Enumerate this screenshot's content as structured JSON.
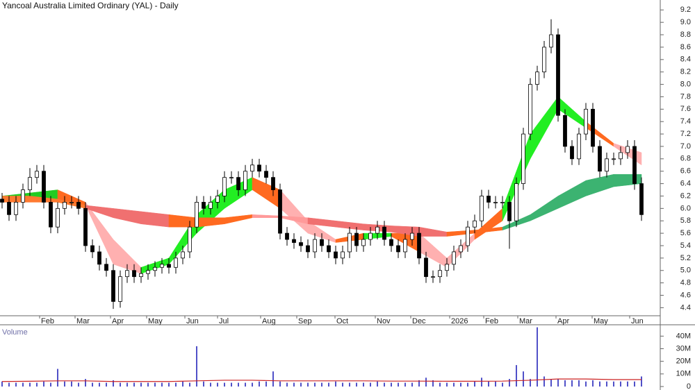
{
  "chart_data": {
    "type": "candlestick",
    "title": "Yancoal Australia Limited Ordinary (YAL) - Daily",
    "xlim": [
      -0.3,
      94.7
    ],
    "xticks": [
      {
        "value": 5.4,
        "label": "Feb"
      },
      {
        "value": 10.5,
        "label": "Mar"
      },
      {
        "value": 15.6,
        "label": "Apr"
      },
      {
        "value": 20.8,
        "label": "May"
      },
      {
        "value": 26.3,
        "label": "Jun"
      },
      {
        "value": 31,
        "label": "Jul"
      },
      {
        "value": 37.2,
        "label": "Aug"
      },
      {
        "value": 42.4,
        "label": "Sep"
      },
      {
        "value": 47.9,
        "label": "Oct"
      },
      {
        "value": 53.7,
        "label": "Nov"
      },
      {
        "value": 58.8,
        "label": "Dec"
      },
      {
        "value": 64.4,
        "label": "2026"
      },
      {
        "value": 69.3,
        "label": "Feb"
      },
      {
        "value": 74.2,
        "label": "Mar"
      },
      {
        "value": 79.7,
        "label": "Apr"
      },
      {
        "value": 84.9,
        "label": "May"
      },
      {
        "value": 90.3,
        "label": "Jun"
      }
    ],
    "ylim": [
      4.27,
      9.36
    ],
    "yticks": [
      4.4,
      4.6,
      4.8,
      {
        "value": 5,
        "label": "5.0"
      },
      5.2,
      5.4,
      5.6,
      5.8,
      {
        "value": 6,
        "label": "6.0"
      },
      6.2,
      6.4,
      6.6,
      6.8,
      {
        "value": 7,
        "label": "7.0"
      },
      7.2,
      7.4,
      7.6,
      7.8,
      {
        "value": 8,
        "label": "8.0"
      },
      8.2,
      8.4,
      8.6,
      8.8,
      {
        "value": 9,
        "label": "9.0"
      },
      9.2
    ],
    "up_color": "#ffffff",
    "down_color": "#000000",
    "open": [
      6.15,
      6.1,
      5.9,
      6.1,
      6.3,
      6.5,
      6.6,
      6.1,
      5.7,
      6.0,
      6.1,
      6.1,
      6.0,
      5.4,
      5.3,
      5.1,
      5.0,
      4.5,
      4.9,
      5.0,
      4.9,
      4.95,
      5.0,
      5.05,
      5.1,
      5.05,
      5.2,
      5.3,
      5.7,
      6.1,
      6.0,
      6.1,
      6.2,
      6.5,
      6.5,
      6.3,
      6.6,
      6.7,
      6.6,
      6.5,
      6.3,
      5.6,
      5.5,
      5.45,
      5.4,
      5.3,
      5.5,
      5.4,
      5.3,
      5.2,
      5.3,
      5.6,
      5.4,
      5.5,
      5.6,
      5.7,
      5.5,
      5.4,
      5.3,
      5.5,
      5.6,
      5.2,
      4.9,
      4.9,
      5.0,
      5.1,
      5.3,
      5.4,
      5.7,
      5.8,
      6.2,
      6.1,
      6.1,
      6.1,
      5.8,
      6.4,
      7.2,
      8.0,
      8.2,
      8.6,
      8.8,
      7.5,
      7.0,
      6.8,
      7.2,
      7.6,
      7.0,
      6.6,
      6.8,
      6.8,
      6.9,
      7.0,
      6.4
    ],
    "high": [
      6.25,
      6.2,
      6.2,
      6.4,
      6.65,
      6.7,
      6.7,
      6.2,
      6.1,
      6.2,
      6.2,
      6.2,
      6.1,
      5.5,
      5.4,
      5.2,
      5.1,
      5.0,
      5.1,
      5.1,
      5.05,
      5.1,
      5.15,
      5.2,
      5.2,
      5.3,
      5.4,
      5.8,
      6.2,
      6.2,
      6.2,
      6.3,
      6.6,
      6.6,
      6.6,
      6.7,
      6.8,
      6.8,
      6.7,
      6.6,
      6.4,
      5.7,
      5.6,
      5.55,
      5.5,
      5.6,
      5.6,
      5.5,
      5.4,
      5.4,
      5.7,
      5.7,
      5.6,
      5.7,
      5.8,
      5.8,
      5.6,
      5.5,
      5.6,
      5.7,
      5.7,
      5.3,
      5.0,
      5.1,
      5.2,
      5.4,
      5.5,
      5.8,
      5.9,
      6.3,
      6.3,
      6.2,
      6.2,
      6.2,
      6.5,
      7.3,
      8.1,
      8.3,
      8.7,
      9.05,
      8.9,
      7.6,
      7.1,
      7.3,
      7.7,
      7.7,
      7.1,
      6.9,
      6.9,
      7.0,
      7.1,
      7.1,
      6.5
    ],
    "low": [
      6.0,
      5.8,
      5.8,
      6.0,
      6.2,
      6.4,
      6.0,
      5.6,
      5.6,
      5.9,
      6.0,
      5.9,
      5.3,
      5.2,
      5.0,
      4.9,
      4.38,
      4.4,
      4.8,
      4.8,
      4.8,
      4.85,
      4.9,
      4.95,
      4.95,
      4.95,
      5.1,
      5.2,
      5.6,
      5.9,
      5.9,
      6.0,
      6.1,
      6.4,
      6.2,
      6.2,
      6.5,
      6.5,
      6.4,
      6.2,
      5.5,
      5.4,
      5.35,
      5.3,
      5.2,
      5.2,
      5.3,
      5.2,
      5.1,
      5.1,
      5.2,
      5.3,
      5.3,
      5.4,
      5.5,
      5.4,
      5.3,
      5.2,
      5.2,
      5.4,
      5.1,
      4.8,
      4.8,
      4.8,
      4.9,
      5.0,
      5.2,
      5.3,
      5.6,
      5.7,
      6.0,
      6.0,
      6.0,
      5.35,
      5.7,
      6.3,
      7.1,
      7.9,
      8.1,
      8.5,
      7.4,
      6.9,
      6.7,
      6.7,
      7.1,
      6.9,
      6.5,
      6.5,
      6.7,
      6.7,
      6.8,
      6.3,
      5.8
    ],
    "close": [
      6.1,
      5.9,
      6.1,
      6.3,
      6.5,
      6.6,
      6.1,
      5.7,
      6.0,
      6.1,
      6.1,
      6.0,
      5.4,
      5.3,
      5.1,
      5.0,
      4.5,
      4.9,
      5.0,
      4.9,
      4.95,
      5.0,
      5.05,
      5.1,
      5.05,
      5.2,
      5.3,
      5.7,
      6.1,
      6.0,
      6.1,
      6.2,
      6.5,
      6.5,
      6.3,
      6.6,
      6.7,
      6.6,
      6.5,
      6.3,
      5.6,
      5.5,
      5.45,
      5.4,
      5.3,
      5.5,
      5.4,
      5.3,
      5.2,
      5.3,
      5.6,
      5.4,
      5.5,
      5.6,
      5.7,
      5.5,
      5.4,
      5.3,
      5.5,
      5.6,
      5.2,
      4.9,
      4.9,
      5.0,
      5.1,
      5.3,
      5.4,
      5.7,
      5.8,
      6.2,
      6.1,
      6.1,
      6.1,
      5.8,
      6.4,
      7.2,
      8.0,
      8.2,
      8.6,
      8.8,
      7.5,
      7.0,
      6.8,
      7.2,
      7.6,
      7.0,
      6.6,
      6.8,
      6.8,
      6.9,
      7.0,
      6.4,
      5.9
    ],
    "band_x": [
      0,
      4,
      8,
      12,
      16,
      20,
      24,
      28,
      32,
      36,
      40,
      44,
      48,
      52,
      56,
      60,
      64,
      68,
      72,
      76,
      80,
      84,
      88,
      92
    ],
    "bands": [
      {
        "lower": [
          6.1,
          6.15,
          6.1,
          6.05,
          5.1,
          4.95,
          5.1,
          5.6,
          6.0,
          6.3,
          6.0,
          5.6,
          5.45,
          5.5,
          5.55,
          5.3,
          5.05,
          5.5,
          5.8,
          6.8,
          7.6,
          7.3,
          7.0,
          6.7
        ],
        "upper": [
          6.2,
          6.25,
          6.3,
          6.1,
          5.5,
          5.05,
          5.2,
          5.9,
          6.3,
          6.5,
          6.3,
          5.8,
          5.5,
          5.6,
          5.6,
          5.6,
          5.2,
          5.6,
          6.0,
          7.2,
          7.8,
          7.4,
          7.05,
          6.9
        ],
        "colors": [
          "#22cc22",
          "#22cc22",
          "#ff6a20",
          "#ffb0b0",
          "#ffb0b0",
          "#22ee22",
          "#22ee22",
          "#22ee22",
          "#22ee22",
          "#ff6a20",
          "#ffb0b0",
          "#ffb0b0",
          "#ff6a20",
          "#22ee22",
          "#ff6a20",
          "#ffb0b0",
          "#ffb0b0",
          "#ff6a20",
          "#22ee22",
          "#22ee22",
          "#22ee22",
          "#ff6a20",
          "#ffb0b0"
        ]
      },
      {
        "lower": [
          6.1,
          6.1,
          6.1,
          6.0,
          5.85,
          5.75,
          5.7,
          5.7,
          5.75,
          5.85,
          5.85,
          5.75,
          5.7,
          5.65,
          5.62,
          5.55,
          5.55,
          5.6,
          5.65,
          5.8,
          6.0,
          6.2,
          6.35,
          6.4
        ],
        "upper": [
          6.2,
          6.2,
          6.15,
          6.05,
          6.0,
          5.95,
          5.9,
          5.85,
          5.85,
          5.9,
          5.88,
          5.85,
          5.8,
          5.75,
          5.72,
          5.7,
          5.62,
          5.65,
          5.7,
          5.9,
          6.2,
          6.45,
          6.55,
          6.55
        ],
        "colors": [
          "#ff7a30",
          "#ff7a30",
          "#ff7a30",
          "#f07070",
          "#f07070",
          "#f07070",
          "#ff6a20",
          "#ff6a20",
          "#ff6a20",
          "#ff9a9a",
          "#ff9a9a",
          "#f07070",
          "#f07070",
          "#f07070",
          "#f07070",
          "#f07070",
          "#ff6a20",
          "#ff6a20",
          "#3cb371",
          "#3cb371",
          "#3cb371",
          "#3cb371",
          "#3cb371"
        ]
      }
    ],
    "volume": {
      "label": "Volume",
      "color": "#5050c8",
      "ma_color": "#cc2222",
      "ylim": [
        0,
        49000000
      ],
      "yticks": [
        0,
        {
          "value": 10000000,
          "label": "10M"
        },
        {
          "value": 20000000,
          "label": "20M"
        },
        {
          "value": 30000000,
          "label": "30M"
        },
        {
          "value": 40000000,
          "label": "40M"
        }
      ],
      "values": [
        4000000,
        3000000,
        3000000,
        3000000,
        3000000,
        3000000,
        4000000,
        3000000,
        14000000,
        4000000,
        4000000,
        3000000,
        6000000,
        3000000,
        3000000,
        3000000,
        5000000,
        3000000,
        3000000,
        3000000,
        3000000,
        3000000,
        3000000,
        3000000,
        3000000,
        3000000,
        4000000,
        3000000,
        32000000,
        4000000,
        3000000,
        3000000,
        3000000,
        3000000,
        3000000,
        3000000,
        3000000,
        4000000,
        4000000,
        12000000,
        4000000,
        3000000,
        3000000,
        3000000,
        3000000,
        3000000,
        3000000,
        3000000,
        4000000,
        3000000,
        3000000,
        3000000,
        3000000,
        3000000,
        4000000,
        3000000,
        3000000,
        3000000,
        3000000,
        3000000,
        5000000,
        7000000,
        5000000,
        3000000,
        3000000,
        3000000,
        3000000,
        3000000,
        4000000,
        7000000,
        4000000,
        4000000,
        3000000,
        6000000,
        17000000,
        12000000,
        6000000,
        47000000,
        8000000,
        6000000,
        6000000,
        5000000,
        5000000,
        5000000,
        4000000,
        5000000,
        4000000,
        4000000,
        4000000,
        4000000,
        4000000,
        4000000,
        8000000
      ],
      "ma": [
        4000000,
        4200000,
        4500000,
        4500000,
        4000000,
        4000000,
        4000000,
        4500000,
        5000000,
        5000000,
        4500000,
        4500000,
        4500000,
        4500000,
        4300000,
        4300000,
        4200000,
        4200000,
        4300000,
        5000000,
        6000000,
        6000000,
        5500000,
        5500000
      ]
    }
  }
}
